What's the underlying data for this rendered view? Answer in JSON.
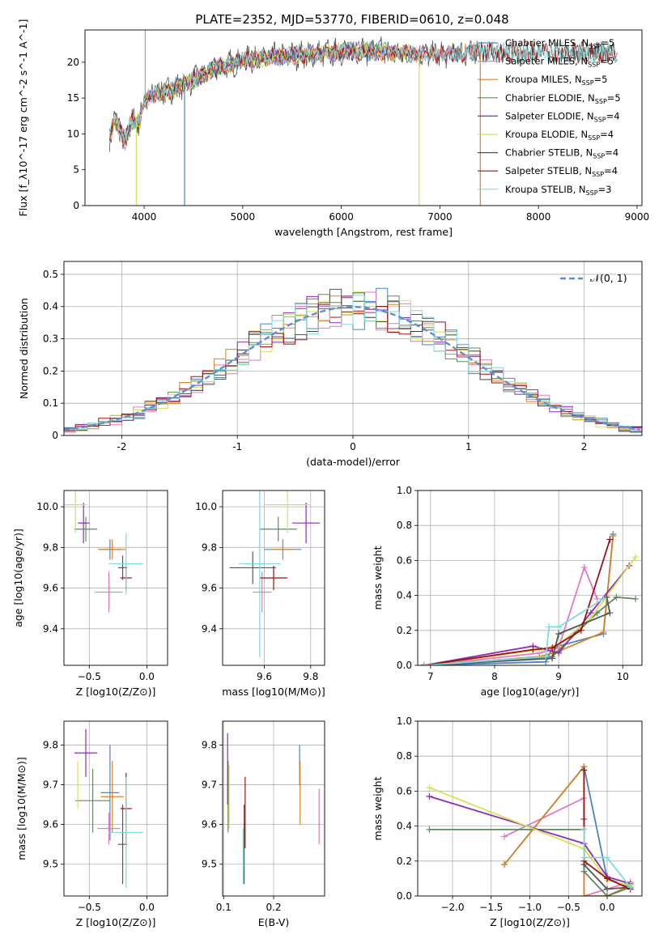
{
  "figure_title": "PLATE=2352, MJD=53770, FIBERID=0610, z=0.048",
  "colors": [
    "#4c84c4",
    "#e377c2",
    "#d98326",
    "#5d8a5d",
    "#8e2bb5",
    "#d4e157",
    "#555555",
    "#a01010",
    "#7fdbdb"
  ],
  "chart_data": [
    {
      "id": "spectrum",
      "type": "line",
      "xlabel": "wavelength [Angstrom, rest frame]",
      "ylabel": "Flux [f_λ10^-17 erg cm^-2 s^-1 A^-1]",
      "xlim": [
        3400,
        9050
      ],
      "ylim": [
        0,
        24.5
      ],
      "xticks": [
        4000,
        5000,
        6000,
        7000,
        8000,
        9000
      ],
      "yticks": [
        0,
        5,
        10,
        15,
        20
      ],
      "legend_position": "upper-right",
      "spectrum_shape": {
        "x": [
          3650,
          3700,
          3750,
          3800,
          3850,
          3900,
          3950,
          4000,
          4100,
          4200,
          4300,
          4400,
          4500,
          4600,
          4700,
          4800,
          4900,
          5000,
          5200,
          5400,
          5600,
          5800,
          6000,
          6200,
          6400,
          6600,
          6800,
          7000,
          7200,
          7400
        ],
        "y": [
          9.5,
          12,
          11,
          8.5,
          11,
          12,
          11.5,
          14.5,
          15.5,
          15.8,
          16.2,
          17,
          17.5,
          18.2,
          19,
          19.5,
          19.8,
          20.2,
          20.6,
          20.8,
          21,
          21.2,
          21.5,
          21.6,
          21.5,
          21.3,
          21.2,
          21,
          21.2,
          21.5
        ]
      },
      "series": [
        {
          "name": "Chabrier MILES",
          "nssp": "5",
          "color": "#4c84c4",
          "xmax": 7400
        },
        {
          "name": "Salpeter MILES",
          "nssp": "5",
          "color": "#e377c2",
          "xmax": 7400
        },
        {
          "name": "Kroupa MILES",
          "nssp": "5",
          "color": "#d98326",
          "xmax": 7400
        },
        {
          "name": "Chabrier ELODIE",
          "nssp": "5",
          "color": "#5d8a5d",
          "xmax": 6800
        },
        {
          "name": "Salpeter ELODIE",
          "nssp": "4",
          "color": "#8e2bb5",
          "xmax": 6800
        },
        {
          "name": "Kroupa ELODIE",
          "nssp": "4",
          "color": "#d4e157",
          "xmax": 6800
        },
        {
          "name": "Chabrier STELIB",
          "nssp": "4",
          "color": "#555555",
          "xmax": 8800
        },
        {
          "name": "Salpeter STELIB",
          "nssp": "4",
          "color": "#a01010",
          "xmax": 8800
        },
        {
          "name": "Kroupa STELIB",
          "nssp": "3",
          "color": "#7fdbdb",
          "xmax": 8800
        }
      ],
      "drops": [
        {
          "x": 3920,
          "color": "#d4e157"
        },
        {
          "x": 4410,
          "color": "#4c84c4"
        },
        {
          "x": 6790,
          "color": "#d4e157"
        },
        {
          "x": 7410,
          "color": "#d98326"
        }
      ]
    },
    {
      "id": "residuals",
      "type": "histogram",
      "xlabel": "(data-model)/error",
      "ylabel": "Normed distribution",
      "xlim": [
        -2.5,
        2.5
      ],
      "ylim": [
        0,
        0.54
      ],
      "xticks": [
        -2,
        -1,
        0,
        1,
        2
      ],
      "yticks": [
        0.0,
        0.1,
        0.2,
        0.3,
        0.4,
        0.5
      ],
      "bin_width": 0.1,
      "reference_curve": {
        "name": "𝒩(0, 1)",
        "color": "#5a8fd0",
        "style": "dashed",
        "legend_position": "upper-right"
      }
    },
    {
      "id": "age_vs_Z",
      "type": "errorbar",
      "xlabel": "Z [log10(Z/Z⊙)]",
      "ylabel": "age  [log10(age/yr)]",
      "xlim": [
        -0.72,
        0.18
      ],
      "ylim": [
        9.22,
        10.08
      ],
      "xticks": [
        -0.5,
        0.0
      ],
      "xticklabels": [
        "−0.5",
        "0.0"
      ],
      "yticks": [
        9.4,
        9.6,
        9.8,
        10.0
      ],
      "yticklabels": [
        "9.4",
        "9.6",
        "9.8",
        "10.0"
      ],
      "points": [
        {
          "x": -0.32,
          "xerr": 0.1,
          "y": 9.79,
          "yerr": 0.05,
          "color": "#4c84c4"
        },
        {
          "x": -0.33,
          "xerr": 0.12,
          "y": 9.58,
          "yerr": 0.1,
          "color": "#e377c2"
        },
        {
          "x": -0.3,
          "xerr": 0.12,
          "y": 9.79,
          "yerr": 0.05,
          "color": "#d98326"
        },
        {
          "x": -0.53,
          "xerr": 0.1,
          "y": 9.89,
          "yerr": 0.06,
          "color": "#5d8a5d"
        },
        {
          "x": -0.55,
          "xerr": 0.05,
          "y": 9.92,
          "yerr": 0.1,
          "color": "#8e2bb5"
        },
        {
          "x": -0.62,
          "xerr": 0.1,
          "y": 10.01,
          "yerr": 0.14,
          "color": "#d4e157"
        },
        {
          "x": -0.21,
          "xerr": 0.04,
          "y": 9.7,
          "yerr": 0.06,
          "color": "#555555"
        },
        {
          "x": -0.18,
          "xerr": 0.05,
          "y": 9.65,
          "yerr": 0.06,
          "color": "#a01010"
        },
        {
          "x": -0.18,
          "xerr": 0.15,
          "y": 9.72,
          "yerr": 0.15,
          "color": "#7fdbdb"
        }
      ]
    },
    {
      "id": "age_vs_mass",
      "type": "errorbar",
      "xlabel": "mass [log10(M/M⊙)]",
      "ylabel": "",
      "xlim": [
        9.42,
        9.86
      ],
      "ylim": [
        9.22,
        10.08
      ],
      "xticks": [
        9.6,
        9.8
      ],
      "xticklabels": [
        "9.6",
        "9.8"
      ],
      "yticks": [
        9.4,
        9.6,
        9.8,
        10.0
      ],
      "yticklabels": [
        "9.4",
        "9.6",
        "9.8",
        "10.0"
      ],
      "points": [
        {
          "x": 9.68,
          "xerr": 0.08,
          "y": 9.79,
          "yerr": 0.05,
          "color": "#4c84c4"
        },
        {
          "x": 9.59,
          "xerr": 0.04,
          "y": 9.58,
          "yerr": 0.1,
          "color": "#e377c2"
        },
        {
          "x": 9.68,
          "xerr": 0.05,
          "y": 9.79,
          "yerr": 0.05,
          "color": "#d98326"
        },
        {
          "x": 9.66,
          "xerr": 0.08,
          "y": 9.89,
          "yerr": 0.06,
          "color": "#5d8a5d"
        },
        {
          "x": 9.78,
          "xerr": 0.06,
          "y": 9.92,
          "yerr": 0.1,
          "color": "#8e2bb5"
        },
        {
          "x": 9.7,
          "xerr": 0.1,
          "y": 10.01,
          "yerr": 0.14,
          "color": "#d4e157"
        },
        {
          "x": 9.55,
          "xerr": 0.1,
          "y": 9.7,
          "yerr": 0.08,
          "color": "#555555"
        },
        {
          "x": 9.64,
          "xerr": 0.06,
          "y": 9.65,
          "yerr": 0.06,
          "color": "#a01010"
        },
        {
          "x": 9.58,
          "xerr": 0.09,
          "y": 9.72,
          "yerr": 0.46,
          "color": "#7fdbdb"
        }
      ]
    },
    {
      "id": "massweight_vs_age",
      "type": "line",
      "xlabel": "age  [log10(age/yr)]",
      "ylabel": "mass weight",
      "xlim": [
        6.8,
        10.3
      ],
      "ylim": [
        0,
        1.0
      ],
      "xticks": [
        7,
        8,
        9,
        10
      ],
      "xticklabels": [
        "7",
        "8",
        "9",
        "10"
      ],
      "yticks": [
        0,
        0.2,
        0.4,
        0.6,
        0.8,
        1.0
      ],
      "yticklabels": [
        "0.0",
        "0.2",
        "0.4",
        "0.6",
        "0.8",
        "1.0"
      ],
      "series": [
        {
          "color": "#4c84c4",
          "x": [
            6.9,
            8.8,
            8.9,
            9.7,
            9.85
          ],
          "y": [
            0.0,
            0.02,
            0.1,
            0.18,
            0.75
          ]
        },
        {
          "color": "#e377c2",
          "x": [
            6.9,
            8.7,
            9.0,
            9.4,
            9.6
          ],
          "y": [
            0.0,
            0.07,
            0.1,
            0.56,
            0.38
          ]
        },
        {
          "color": "#d98326",
          "x": [
            6.9,
            8.7,
            9.0,
            9.7,
            9.85
          ],
          "y": [
            0.0,
            0.05,
            0.08,
            0.19,
            0.74
          ]
        },
        {
          "color": "#5d8a5d",
          "x": [
            6.9,
            8.9,
            9.6,
            9.9,
            10.2
          ],
          "y": [
            0.0,
            0.05,
            0.3,
            0.39,
            0.38
          ]
        },
        {
          "color": "#8e2bb5",
          "x": [
            6.9,
            8.6,
            9.0,
            9.5,
            10.1
          ],
          "y": [
            0.0,
            0.11,
            0.07,
            0.3,
            0.57
          ]
        },
        {
          "color": "#d4e157",
          "x": [
            6.9,
            8.7,
            9.0,
            9.5,
            10.2
          ],
          "y": [
            0.0,
            0.09,
            0.12,
            0.27,
            0.62
          ]
        },
        {
          "color": "#555555",
          "x": [
            6.9,
            8.9,
            9.0,
            9.8,
            9.75
          ],
          "y": [
            0.0,
            0.04,
            0.18,
            0.3,
            0.39
          ]
        },
        {
          "color": "#a01010",
          "x": [
            6.9,
            8.6,
            8.9,
            9.35,
            9.8
          ],
          "y": [
            0.0,
            0.09,
            0.1,
            0.2,
            0.72
          ]
        },
        {
          "color": "#7fdbdb",
          "x": [
            6.9,
            8.8,
            8.85,
            9.0,
            9.7
          ],
          "y": [
            0.0,
            0.05,
            0.22,
            0.22,
            0.38
          ]
        }
      ]
    },
    {
      "id": "mass_vs_Z",
      "type": "errorbar",
      "xlabel": "Z [log10(Z/Z⊙)]",
      "ylabel": "mass [log10(M/M⊙)]",
      "xlim": [
        -0.72,
        0.18
      ],
      "ylim": [
        9.42,
        9.86
      ],
      "xticks": [
        -0.5,
        0.0
      ],
      "xticklabels": [
        "−0.5",
        "0.0"
      ],
      "yticks": [
        9.5,
        9.6,
        9.7,
        9.8
      ],
      "yticklabels": [
        "9.5",
        "9.6",
        "9.7",
        "9.8"
      ],
      "points": [
        {
          "x": -0.32,
          "xerr": 0.08,
          "y": 9.68,
          "yerr": 0.12,
          "color": "#4c84c4"
        },
        {
          "x": -0.33,
          "xerr": 0.1,
          "y": 9.59,
          "yerr": 0.04,
          "color": "#e377c2"
        },
        {
          "x": -0.3,
          "xerr": 0.1,
          "y": 9.67,
          "yerr": 0.09,
          "color": "#d98326"
        },
        {
          "x": -0.47,
          "xerr": 0.15,
          "y": 9.66,
          "yerr": 0.08,
          "color": "#5d8a5d"
        },
        {
          "x": -0.53,
          "xerr": 0.1,
          "y": 9.78,
          "yerr": 0.06,
          "color": "#8e2bb5"
        },
        {
          "x": -0.6,
          "xerr": 0.1,
          "y": 9.7,
          "yerr": 0.06,
          "color": "#d4e157"
        },
        {
          "x": -0.21,
          "xerr": 0.04,
          "y": 9.55,
          "yerr": 0.1,
          "color": "#555555"
        },
        {
          "x": -0.18,
          "xerr": 0.05,
          "y": 9.64,
          "yerr": 0.09,
          "color": "#a01010"
        },
        {
          "x": -0.18,
          "xerr": 0.15,
          "y": 9.58,
          "yerr": 0.14,
          "color": "#7fdbdb"
        }
      ]
    },
    {
      "id": "mass_vs_EBV",
      "type": "errorbar",
      "xlabel": "E(B-V)",
      "ylabel": "",
      "xlim": [
        0.098,
        0.302
      ],
      "ylim": [
        9.42,
        9.86
      ],
      "xticks": [
        0.1,
        0.2
      ],
      "xticklabels": [
        "0.1",
        "0.2"
      ],
      "yticks": [
        9.5,
        9.6,
        9.7,
        9.8
      ],
      "yticklabels": [
        "9.5",
        "9.6",
        "9.7",
        "9.8"
      ],
      "points": [
        {
          "x": 0.252,
          "xerr": 0,
          "y": 9.75,
          "yerr": 0.05,
          "color": "#4c84c4"
        },
        {
          "x": 0.291,
          "xerr": 0,
          "y": 9.62,
          "yerr": 0.07,
          "color": "#e377c2"
        },
        {
          "x": 0.253,
          "xerr": 0,
          "y": 9.68,
          "yerr": 0.08,
          "color": "#d98326"
        },
        {
          "x": 0.109,
          "xerr": 0,
          "y": 9.67,
          "yerr": 0.09,
          "color": "#5d8a5d"
        },
        {
          "x": 0.108,
          "xerr": 0,
          "y": 9.74,
          "yerr": 0.09,
          "color": "#8e2bb5"
        },
        {
          "x": 0.111,
          "xerr": 0,
          "y": 9.67,
          "yerr": 0.08,
          "color": "#d4e157"
        },
        {
          "x": 0.141,
          "xerr": 0,
          "y": 9.55,
          "yerr": 0.1,
          "color": "#555555"
        },
        {
          "x": 0.143,
          "xerr": 0,
          "y": 9.63,
          "yerr": 0.09,
          "color": "#a01010"
        },
        {
          "x": 0.139,
          "xerr": 0,
          "y": 9.52,
          "yerr": 0.07,
          "color": "#7fdbdb"
        }
      ]
    },
    {
      "id": "massweight_vs_Z",
      "type": "line",
      "xlabel": "Z [log10(Z/Z⊙)]",
      "ylabel": "mass weight",
      "xlim": [
        -2.45,
        0.45
      ],
      "ylim": [
        0,
        1.0
      ],
      "xticks": [
        -2.0,
        -1.5,
        -1.0,
        -0.5,
        0.0
      ],
      "xticklabels": [
        "−2.0",
        "−1.5",
        "−1.0",
        "−0.5",
        "0.0"
      ],
      "yticks": [
        0,
        0.2,
        0.4,
        0.6,
        0.8,
        1.0
      ],
      "yticklabels": [
        "0.0",
        "0.2",
        "0.4",
        "0.6",
        "0.8",
        "1.0"
      ],
      "series": [
        {
          "color": "#4c84c4",
          "x": [
            -1.33,
            -0.3,
            0.0,
            0.3
          ],
          "y": [
            0.18,
            0.74,
            0.1,
            0.05
          ]
        },
        {
          "color": "#e377c2",
          "x": [
            -1.33,
            -0.3,
            -0.3,
            0.3
          ],
          "y": [
            0.34,
            0.56,
            0.0,
            0.08
          ]
        },
        {
          "color": "#d98326",
          "x": [
            -1.33,
            -0.3,
            -0.3,
            0.0,
            0.3
          ],
          "y": [
            0.18,
            0.74,
            0.0,
            0.0,
            0.06
          ]
        },
        {
          "color": "#5d8a5d",
          "x": [
            -2.3,
            -0.3,
            -0.3,
            0.0,
            0.3
          ],
          "y": [
            0.38,
            0.38,
            0.14,
            0.0,
            0.05
          ]
        },
        {
          "color": "#8e2bb5",
          "x": [
            -2.3,
            -0.3,
            0.0,
            0.3
          ],
          "y": [
            0.57,
            0.3,
            0.11,
            0.07
          ]
        },
        {
          "color": "#d4e157",
          "x": [
            -2.3,
            -0.3,
            0.0,
            0.3
          ],
          "y": [
            0.62,
            0.27,
            0.09,
            0.06
          ]
        },
        {
          "color": "#555555",
          "x": [
            -0.3,
            -0.3,
            0.0,
            0.3
          ],
          "y": [
            0.44,
            0.18,
            0.04,
            0.05
          ]
        },
        {
          "color": "#a01010",
          "x": [
            -0.3,
            -0.3,
            0.0,
            0.3
          ],
          "y": [
            0.72,
            0.2,
            0.1,
            0.04
          ]
        },
        {
          "color": "#7fdbdb",
          "x": [
            -0.3,
            -0.3,
            0.0,
            0.3
          ],
          "y": [
            0.38,
            0.22,
            0.22,
            0.05
          ]
        }
      ]
    }
  ]
}
